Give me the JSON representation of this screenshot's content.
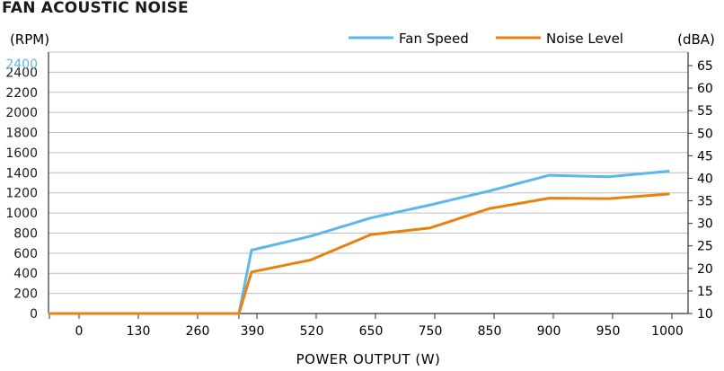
{
  "chart_data": {
    "type": "line",
    "title": "FAN ACOUSTIC NOISE",
    "xlabel": "POWER OUTPUT (W)",
    "ylabel_left": "(RPM)",
    "ylabel_right": "(dBA)",
    "x_categories": [
      "",
      "0",
      "130",
      "260",
      "",
      "390",
      "520",
      "650",
      "750",
      "850",
      "900",
      "950",
      "1000"
    ],
    "y_left": {
      "min": 0,
      "max": 2600,
      "ticks": [
        "0",
        "200",
        "400",
        "600",
        "800",
        "1000",
        "1200",
        "1400",
        "1600",
        "1800",
        "2000",
        "2200",
        "2400",
        "2400"
      ],
      "top_tick_color": "#5db7e8"
    },
    "y_right": {
      "min": 10,
      "max": 68,
      "ticks": [
        "10",
        "15",
        "20",
        "25",
        "30",
        "35",
        "40",
        "45",
        "50",
        "55",
        "60",
        "65"
      ]
    },
    "grid": "horizontal",
    "legend_position": "top-right",
    "series": [
      {
        "name": "Fan Speed",
        "axis": "left",
        "color": "#5db7e8",
        "points": [
          {
            "x": -0.7,
            "y": 0
          },
          {
            "x": 3.7,
            "y": 0
          },
          {
            "x": 4.0,
            "y": 630
          },
          {
            "x": 5.0,
            "y": 770
          },
          {
            "x": 6.0,
            "y": 950
          },
          {
            "x": 7.0,
            "y": 1080
          },
          {
            "x": 8.0,
            "y": 1220
          },
          {
            "x": 9.0,
            "y": 1375
          },
          {
            "x": 10.0,
            "y": 1360
          },
          {
            "x": 11.0,
            "y": 1415
          }
        ]
      },
      {
        "name": "Noise Level",
        "axis": "right",
        "color": "#e8820c",
        "points": [
          {
            "x": -0.7,
            "y": 10
          },
          {
            "x": 3.7,
            "y": 10
          },
          {
            "x": 4.0,
            "y": 19.2
          },
          {
            "x": 5.0,
            "y": 21.9
          },
          {
            "x": 6.0,
            "y": 27.5
          },
          {
            "x": 7.0,
            "y": 29.0
          },
          {
            "x": 8.0,
            "y": 33.3
          },
          {
            "x": 9.0,
            "y": 35.6
          },
          {
            "x": 10.0,
            "y": 35.5
          },
          {
            "x": 11.0,
            "y": 36.5
          }
        ]
      }
    ]
  }
}
